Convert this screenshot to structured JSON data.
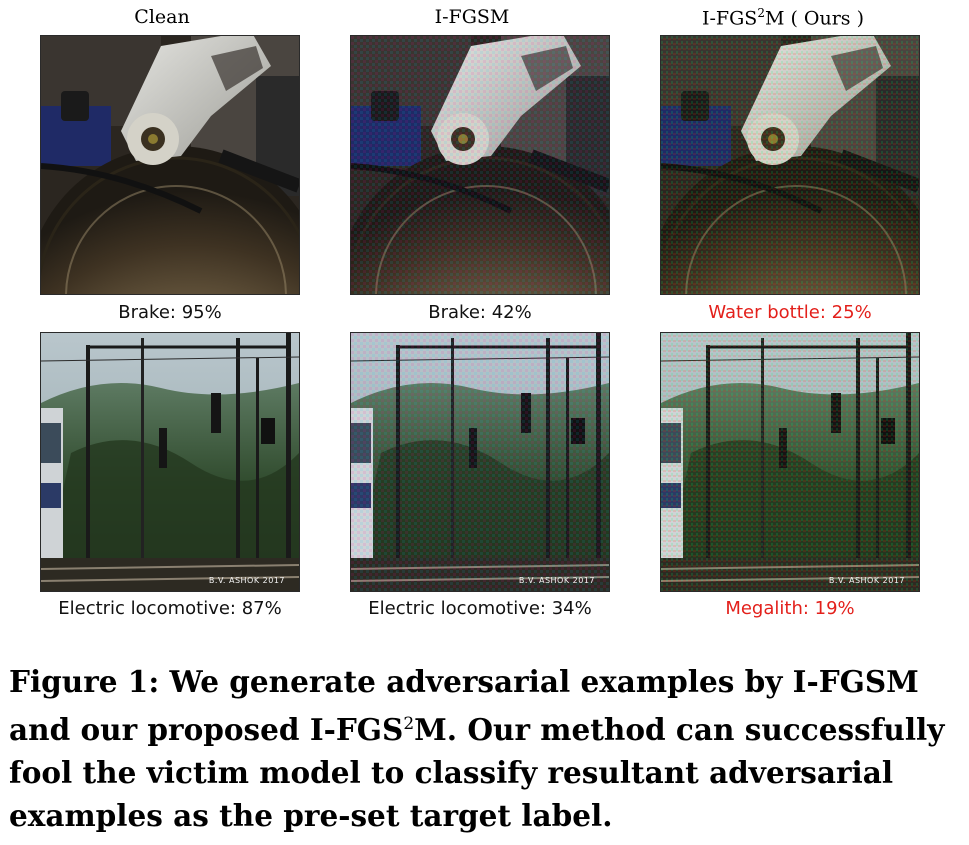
{
  "columns": [
    {
      "title": "Clean"
    },
    {
      "title": "I-FGSM"
    },
    {
      "title_main": "I-FGS",
      "title_sup": "2",
      "title_tail": "M ( Ours )"
    }
  ],
  "rows": [
    {
      "scene": "brake",
      "captions": [
        "Brake: 95%",
        "Brake: 42%",
        "Water bottle: 25%"
      ]
    },
    {
      "scene": "locomotive",
      "watermark": "B.V. ASHOK 2017",
      "captions": [
        "Electric locomotive: 87%",
        "Electric locomotive: 34%",
        "Megalith: 19%"
      ]
    }
  ],
  "figure_caption": {
    "before_sup": "Figure 1: We generate adversarial examples by I-FGSM and our proposed I-FGS",
    "sup": "2",
    "after_sup": "M. Our method can successfully fool the victim model to classify resultant adversarial examples as the pre-set target label."
  },
  "colors": {
    "fooled_caption": "#e3201b"
  }
}
